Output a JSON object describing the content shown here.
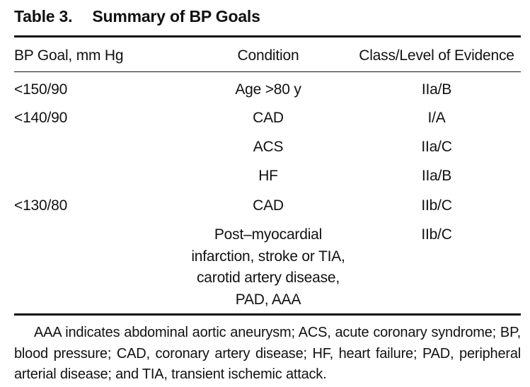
{
  "table": {
    "title_number": "Table 3.",
    "title_text": "Summary of BP Goals",
    "headers": {
      "goal": "BP Goal, mm Hg",
      "condition": "Condition",
      "evidence": "Class/Level of Evidence"
    },
    "rows": [
      {
        "goal": "<150/90",
        "condition": "Age >80 y",
        "evidence": "IIa/B"
      },
      {
        "goal": "<140/90",
        "condition": "CAD",
        "evidence": "I/A"
      },
      {
        "goal": "",
        "condition": "ACS",
        "evidence": "IIa/C"
      },
      {
        "goal": "",
        "condition": "HF",
        "evidence": "IIa/B"
      },
      {
        "goal": "<130/80",
        "condition": "CAD",
        "evidence": "IIb/C"
      },
      {
        "goal": "",
        "condition_lines": [
          "Post–myocardial",
          "infarction, stroke or TIA,",
          "carotid artery disease,",
          "PAD, AAA"
        ],
        "evidence": "IIb/C"
      }
    ],
    "footnote": "AAA indicates abdominal aortic aneurysm; ACS, acute coronary syndrome; BP, blood pressure; CAD, coronary artery disease; HF, heart failure; PAD, peripheral arterial disease; and TIA, transient ischemic attack."
  }
}
